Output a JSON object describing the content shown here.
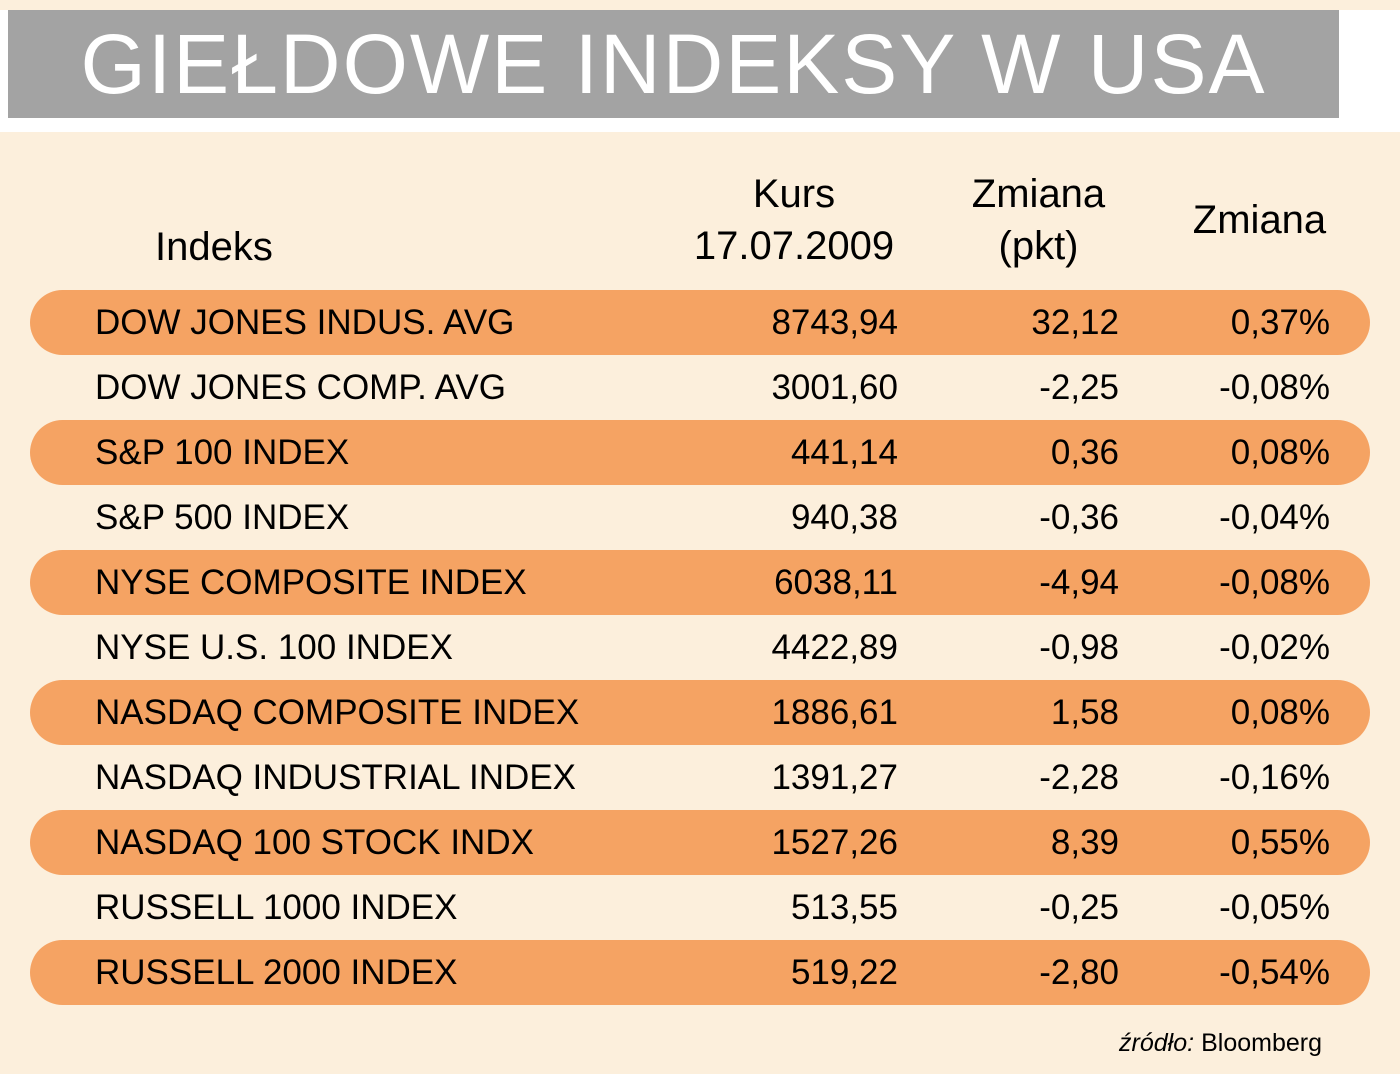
{
  "title": "GIEŁDOWE INDEKSY W USA",
  "colors": {
    "page_bg": "#fcefdc",
    "title_bg": "#a3a3a3",
    "title_text": "#ffffff",
    "row_highlight": "#f5a363",
    "text": "#000000"
  },
  "table": {
    "headers": {
      "index": "Indeks",
      "kurs": [
        "Kurs",
        "17.07.2009"
      ],
      "zmiana_pkt": [
        "Zmiana",
        "(pkt)"
      ],
      "zmiana_pct": "Zmiana"
    },
    "rows": [
      {
        "name": "DOW JONES INDUS. AVG",
        "kurs": "8743,94",
        "zmiana_pkt": "32,12",
        "zmiana_pct": "0,37%",
        "highlight": true
      },
      {
        "name": "DOW JONES COMP. AVG",
        "kurs": "3001,60",
        "zmiana_pkt": "-2,25",
        "zmiana_pct": "-0,08%",
        "highlight": false
      },
      {
        "name": "S&P 100 INDEX",
        "kurs": "441,14",
        "zmiana_pkt": "0,36",
        "zmiana_pct": "0,08%",
        "highlight": true
      },
      {
        "name": "S&P 500 INDEX",
        "kurs": "940,38",
        "zmiana_pkt": "-0,36",
        "zmiana_pct": "-0,04%",
        "highlight": false
      },
      {
        "name": "NYSE COMPOSITE INDEX",
        "kurs": "6038,11",
        "zmiana_pkt": "-4,94",
        "zmiana_pct": "-0,08%",
        "highlight": true
      },
      {
        "name": "NYSE U.S. 100 INDEX",
        "kurs": "4422,89",
        "zmiana_pkt": "-0,98",
        "zmiana_pct": "-0,02%",
        "highlight": false
      },
      {
        "name": "NASDAQ COMPOSITE INDEX",
        "kurs": "1886,61",
        "zmiana_pkt": "1,58",
        "zmiana_pct": "0,08%",
        "highlight": true
      },
      {
        "name": "NASDAQ INDUSTRIAL INDEX",
        "kurs": "1391,27",
        "zmiana_pkt": "-2,28",
        "zmiana_pct": "-0,16%",
        "highlight": false
      },
      {
        "name": "NASDAQ 100 STOCK INDX",
        "kurs": "1527,26",
        "zmiana_pkt": "8,39",
        "zmiana_pct": "0,55%",
        "highlight": true
      },
      {
        "name": "RUSSELL 1000 INDEX",
        "kurs": "513,55",
        "zmiana_pkt": "-0,25",
        "zmiana_pct": "-0,05%",
        "highlight": false
      },
      {
        "name": "RUSSELL 2000 INDEX",
        "kurs": "519,22",
        "zmiana_pkt": "-2,80",
        "zmiana_pct": "-0,54%",
        "highlight": true
      }
    ]
  },
  "footer": {
    "label": "źródło:",
    "value": "Bloomberg"
  },
  "chart_data": {
    "type": "table",
    "title": "GIEŁDOWE INDEKSY W USA",
    "columns": [
      "Indeks",
      "Kurs 17.07.2009",
      "Zmiana (pkt)",
      "Zmiana"
    ],
    "rows": [
      [
        "DOW JONES INDUS. AVG",
        "8743,94",
        "32,12",
        "0,37%"
      ],
      [
        "DOW JONES COMP. AVG",
        "3001,60",
        "-2,25",
        "-0,08%"
      ],
      [
        "S&P 100 INDEX",
        "441,14",
        "0,36",
        "0,08%"
      ],
      [
        "S&P 500 INDEX",
        "940,38",
        "-0,36",
        "-0,04%"
      ],
      [
        "NYSE COMPOSITE INDEX",
        "6038,11",
        "-4,94",
        "-0,08%"
      ],
      [
        "NYSE U.S. 100 INDEX",
        "4422,89",
        "-0,98",
        "-0,02%"
      ],
      [
        "NASDAQ COMPOSITE INDEX",
        "1886,61",
        "1,58",
        "0,08%"
      ],
      [
        "NASDAQ INDUSTRIAL INDEX",
        "1391,27",
        "-2,28",
        "-0,16%"
      ],
      [
        "NASDAQ 100 STOCK INDX",
        "1527,26",
        "8,39",
        "0,55%"
      ],
      [
        "RUSSELL 1000 INDEX",
        "513,55",
        "-0,25",
        "-0,05%"
      ],
      [
        "RUSSELL 2000 INDEX",
        "519,22",
        "-2,80",
        "-0,54%"
      ]
    ],
    "source": "źródło: Bloomberg",
    "layout": {
      "highlight_pattern": "every other row (1st, 3rd, 5th...) has orange rounded-pill background"
    }
  }
}
